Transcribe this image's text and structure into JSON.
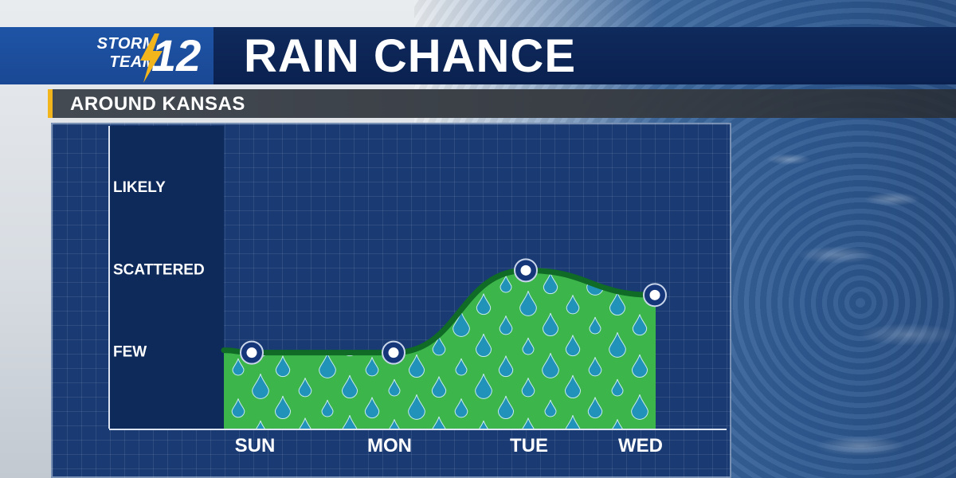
{
  "header": {
    "logo_line1": "STORM",
    "logo_line2": "TEAM",
    "logo_number": "12",
    "title": "RAIN CHANCE"
  },
  "subheader": {
    "text": "AROUND KANSAS"
  },
  "colors": {
    "header_bg": "#0f2a5c",
    "logo_bg": "#1e54a6",
    "accent": "#f2b51c",
    "panel_bg": "#1a3a73",
    "label_column": "#0e2a5a",
    "area_fill": "#3cb54a",
    "area_stroke": "#0f6b25",
    "marker_fill": "#ffffff",
    "marker_ring": "#16367a",
    "drop_color": "#1f8fc6"
  },
  "chart_data": {
    "type": "area",
    "categories": [
      "SUN",
      "MON",
      "TUE",
      "WED"
    ],
    "y_levels": [
      "FEW",
      "SCATTERED",
      "LIKELY"
    ],
    "values": [
      1,
      1,
      2,
      1.7
    ],
    "ylim": [
      0,
      3
    ],
    "grid": true,
    "title": "RAIN CHANCE",
    "subtitle": "AROUND KANSAS",
    "xlabel": "",
    "ylabel": ""
  }
}
